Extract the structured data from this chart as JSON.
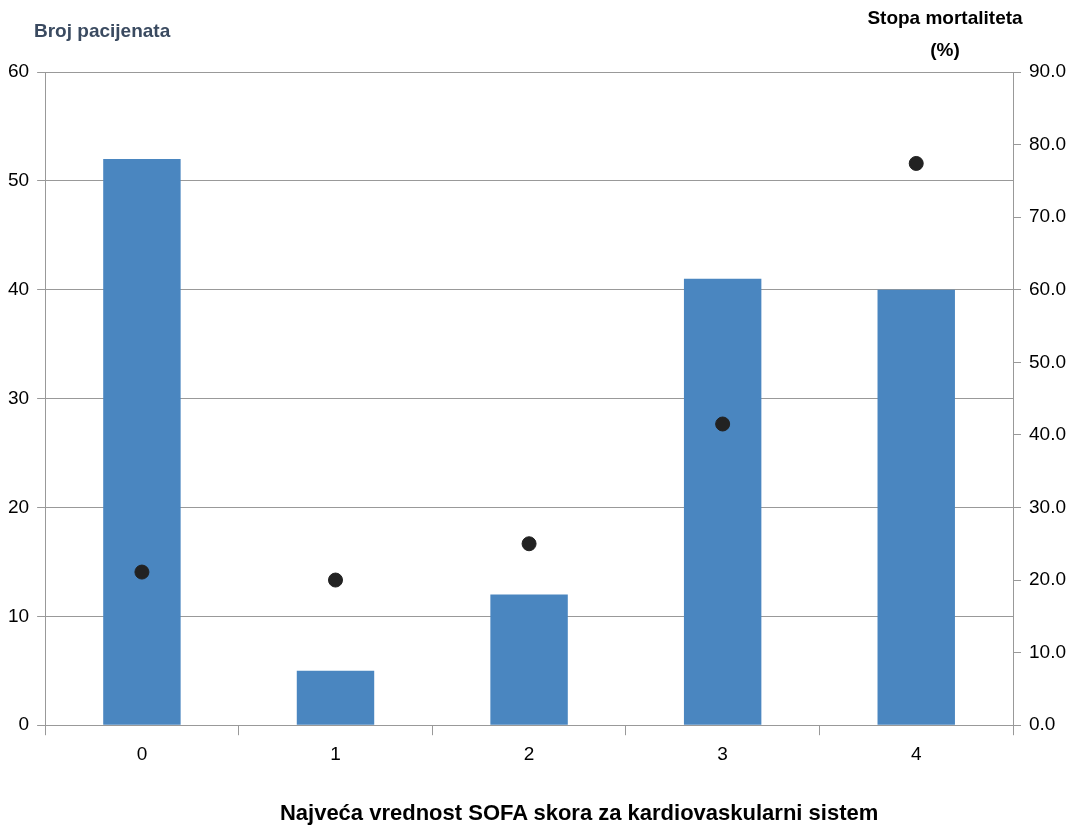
{
  "chart_data": {
    "type": "bar",
    "xlabel": "Najveća vrednost SOFA skora za kardiovaskularni sistem",
    "ylabel": "Broj pacijenata",
    "y2label": "Stopa mortaliteta (%)",
    "categories": [
      "0",
      "1",
      "2",
      "3",
      "4"
    ],
    "series": [
      {
        "color": "#4a86c0",
        "values": [
          52,
          5,
          12,
          41,
          40
        ]
      },
      {
        "type": "scatter",
        "axis": "y2",
        "color": "#222222",
        "marker": "circle",
        "values": [
          21.1,
          20.0,
          25.0,
          41.5,
          77.4
        ]
      }
    ],
    "ylim": [
      0,
      60
    ],
    "yticks": [
      0,
      10,
      20,
      30,
      40,
      50,
      60
    ],
    "y2lim": [
      0,
      90
    ],
    "y2ticks": [
      {
        "value": 0,
        "label": "0.0"
      },
      {
        "value": 10,
        "label": "10.0"
      },
      {
        "value": 20,
        "label": "20.0"
      },
      {
        "value": 30,
        "label": "30.0"
      },
      {
        "value": 40,
        "label": "40.0"
      },
      {
        "value": 50,
        "label": "50.0"
      },
      {
        "value": 60,
        "label": "60.0"
      },
      {
        "value": 70,
        "label": "70.0"
      },
      {
        "value": 80,
        "label": "80.0"
      },
      {
        "value": 90,
        "label": "90.0"
      }
    ],
    "grid": "y",
    "legend": false
  }
}
